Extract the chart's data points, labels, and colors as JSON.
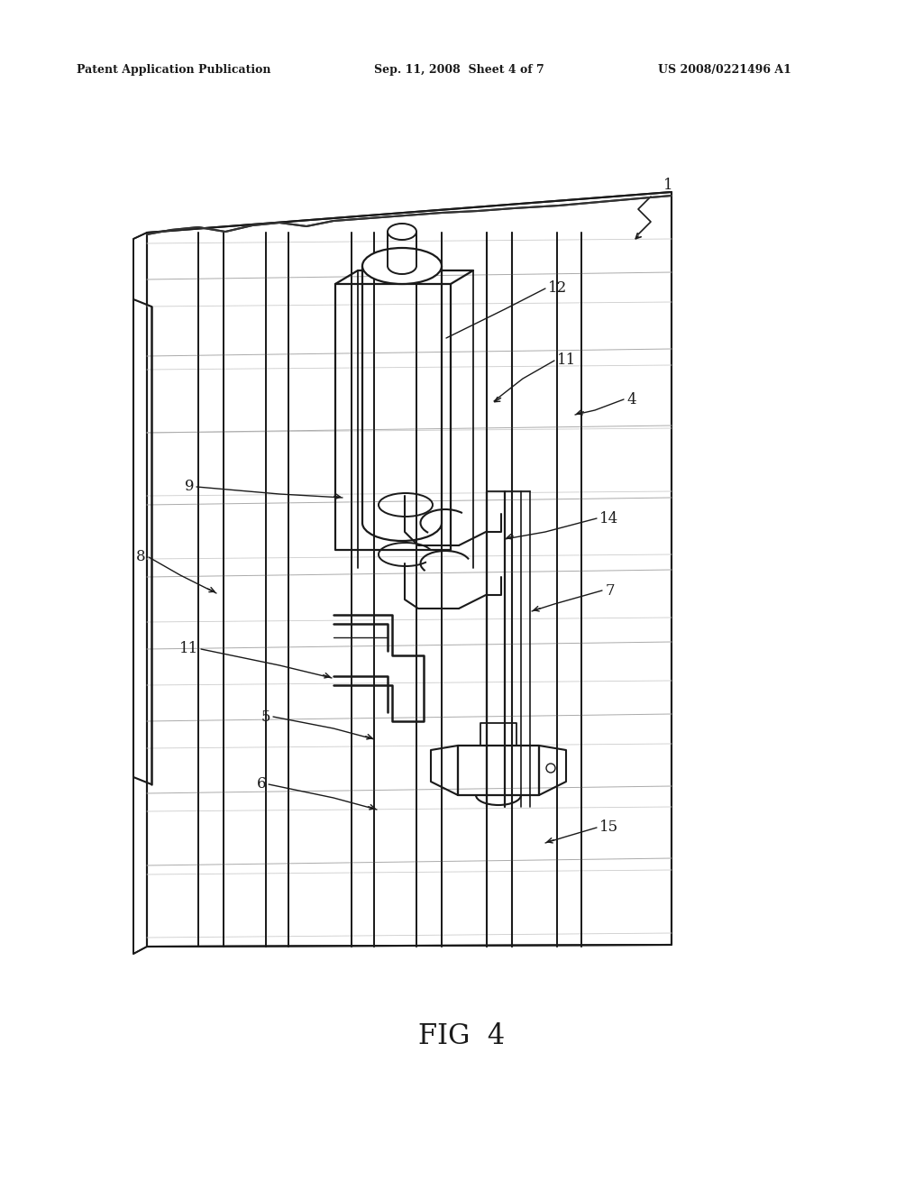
{
  "background_color": "#ffffff",
  "header_left": "Patent Application Publication",
  "header_center": "Sep. 11, 2008  Sheet 4 of 7",
  "header_right": "US 2008/0221496 A1",
  "figure_label": "FIG  4",
  "line_color": "#1a1a1a",
  "line_color_med": "#333333"
}
